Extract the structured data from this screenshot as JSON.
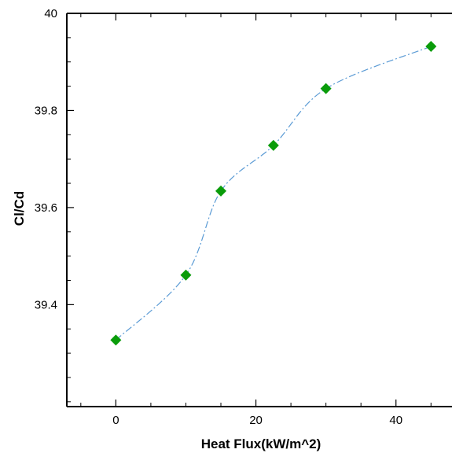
{
  "chart_data": {
    "type": "scatter",
    "title": "",
    "xlabel": "Heat Flux(kW/m^2)",
    "ylabel": "Cl/Cd",
    "xlim": [
      -7,
      48
    ],
    "ylim": [
      39.19,
      40.0
    ],
    "x_ticks": [
      0,
      20,
      40
    ],
    "x_tick_labels": [
      "0",
      "20",
      "40"
    ],
    "y_ticks": [
      39.4,
      39.6,
      39.8,
      40.0
    ],
    "y_tick_labels": [
      "39.4",
      "39.6",
      "39.8",
      "40"
    ],
    "x_minor_step": 5,
    "y_minor_step": 0.05,
    "grid": false,
    "legend": "none",
    "series": [
      {
        "x": [
          0,
          10,
          15,
          22.5,
          30,
          45
        ],
        "y": [
          39.327,
          39.461,
          39.634,
          39.728,
          39.845,
          39.932
        ],
        "marker": "diamond",
        "marker_color": "#0a9c0a",
        "line_style": "dash-dot",
        "line_color": "#5b9bd5"
      }
    ]
  }
}
